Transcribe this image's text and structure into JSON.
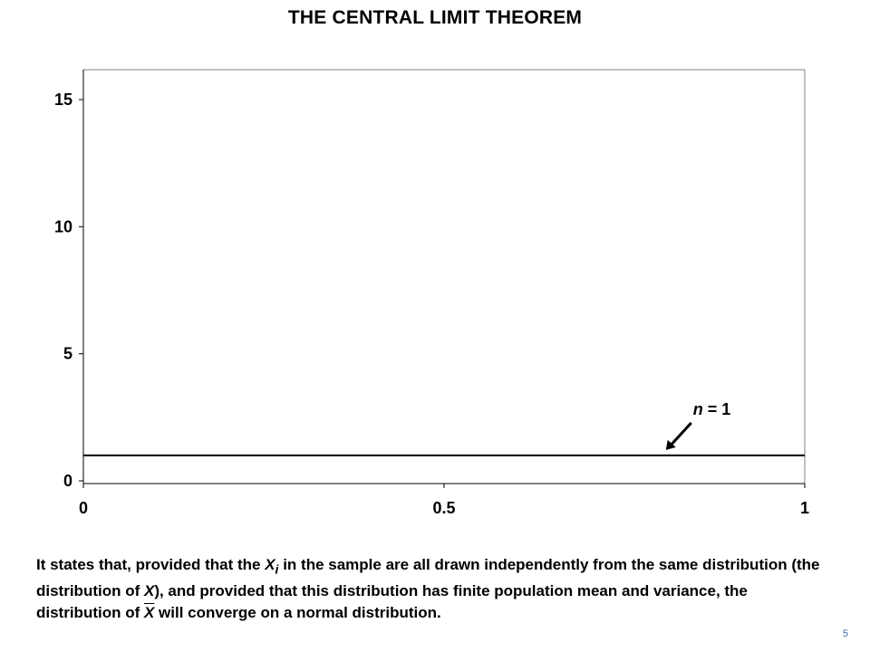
{
  "slide": {
    "title": "THE CENTRAL LIMIT THEOREM",
    "page_number": "5",
    "caption": {
      "p1": "It states that, provided that the ",
      "xi_var": "X",
      "xi_sub": "i",
      "p2": " in the sample are all drawn independently from the same distribution (the distribution of ",
      "x_var": "X",
      "p3": "), and provided that this distribution has finite population mean and variance, the distribution of ",
      "xbar_var": "X",
      "p4": " will converge on a normal distribution."
    }
  },
  "chart_data": {
    "type": "line",
    "title": "",
    "xlabel": "",
    "ylabel": "",
    "xlim": [
      0,
      1
    ],
    "ylim": [
      0,
      16
    ],
    "x_ticks": [
      "0",
      "0.5",
      "1"
    ],
    "y_ticks": [
      "0",
      "5",
      "10",
      "15"
    ],
    "grid": false,
    "series": [
      {
        "x": [
          0,
          0.25,
          0.5,
          0.75,
          1
        ],
        "values": [
          1,
          1,
          1,
          1,
          1
        ],
        "color": "#000000"
      }
    ],
    "annotation": {
      "text_var": "n",
      "text_rest": " = 1",
      "points_to": {
        "x": 0.81,
        "y": 1
      }
    }
  }
}
